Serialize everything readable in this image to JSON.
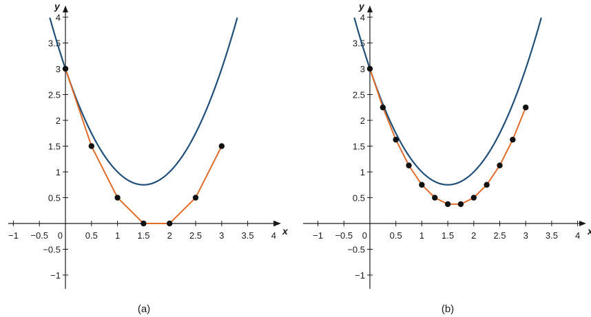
{
  "colors": {
    "curve": "#1f4e79",
    "polyline": "#e06c2c",
    "point": "#111111",
    "axis": "#1a1a1a"
  },
  "chart_data": [
    {
      "type": "line",
      "caption": "(a)",
      "xlabel": "x",
      "ylabel": "y",
      "xlim": [
        -1.1,
        4.15
      ],
      "ylim": [
        -1.3,
        4.1
      ],
      "x_ticks": [
        -1,
        -0.5,
        0.5,
        1,
        1.5,
        2,
        2.5,
        3,
        3.5,
        4
      ],
      "x_tick_labels": [
        "−1",
        "−0.5",
        "0.5",
        "1",
        "1.5",
        "2",
        "2.5",
        "3",
        "3.5",
        "4"
      ],
      "y_ticks": [
        -1,
        -0.5,
        0.5,
        1,
        1.5,
        2,
        2.5,
        3,
        3.5,
        4
      ],
      "y_tick_labels": [
        "−1",
        "−0.5",
        "0.5",
        "1",
        "1.5",
        "2",
        "2.5",
        "3",
        "3.5",
        "4"
      ],
      "origin_label": "0",
      "curve": {
        "function": "y = x^2 - 3x + 3",
        "x_range": [
          -0.3,
          3.3
        ]
      },
      "series": [
        {
          "x": [
            0,
            0.5,
            1,
            1.5,
            2,
            2.5,
            3
          ],
          "y": [
            3,
            1.5,
            0.5,
            0,
            0,
            0.5,
            1.5
          ]
        }
      ]
    },
    {
      "type": "line",
      "caption": "(b)",
      "xlabel": "x",
      "ylabel": "y",
      "xlim": [
        -1.1,
        4.15
      ],
      "ylim": [
        -1.3,
        4.1
      ],
      "x_ticks": [
        -1,
        -0.5,
        0.5,
        1,
        1.5,
        2,
        2.5,
        3,
        3.5,
        4
      ],
      "x_tick_labels": [
        "−1",
        "−0.5",
        "0.5",
        "1",
        "1.5",
        "2",
        "2.5",
        "3",
        "3.5",
        "4"
      ],
      "y_ticks": [
        -1,
        -0.5,
        0.5,
        1,
        1.5,
        2,
        2.5,
        3,
        3.5,
        4
      ],
      "y_tick_labels": [
        "−1",
        "−0.5",
        "0.5",
        "1",
        "1.5",
        "2",
        "2.5",
        "3",
        "3.5",
        "4"
      ],
      "origin_label": "0",
      "curve": {
        "function": "y = x^2 - 3x + 3",
        "x_range": [
          -0.3,
          3.3
        ]
      },
      "series": [
        {
          "x": [
            0,
            0.25,
            0.5,
            0.75,
            1,
            1.25,
            1.5,
            1.75,
            2,
            2.25,
            2.5,
            2.75,
            3
          ],
          "y": [
            3,
            2.25,
            1.625,
            1.125,
            0.75,
            0.5,
            0.375,
            0.375,
            0.5,
            0.75,
            1.125,
            1.625,
            2.25
          ]
        }
      ]
    }
  ]
}
